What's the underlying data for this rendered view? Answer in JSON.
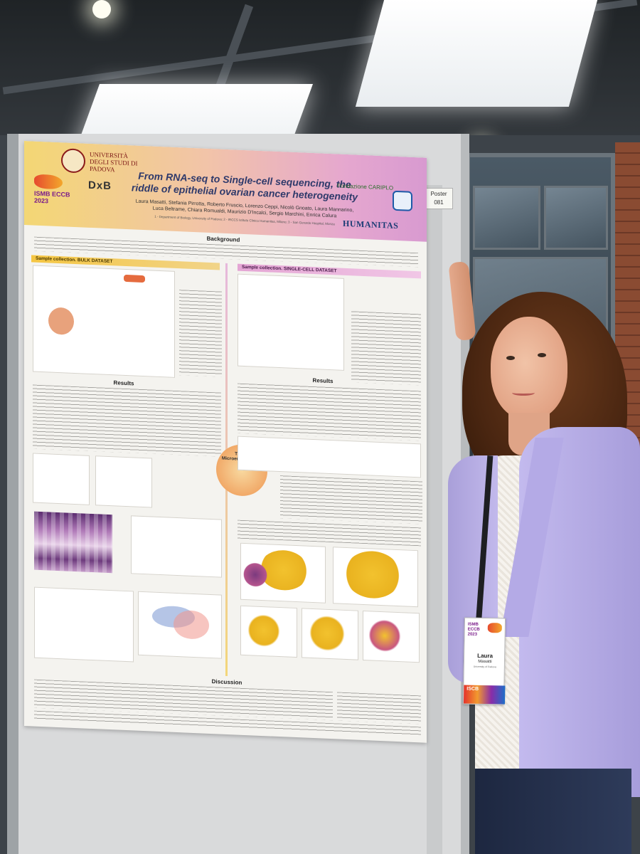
{
  "poster": {
    "title": "From RNA-seq to Single-cell sequencing, the riddle of epithelial ovarian cancer heterogeneity",
    "authors": "Laura Masatti, Stefania Pirrotta, Roberto Fruscio, Lorenzo Ceppi, Nicolò Gnoato, Laura Mannarino, Luca Beltrame, Chiara Romualdi, Maurizio D'Incalci, Sergio Marchini, Enrica Calura",
    "affiliation": "1 - Department of Biology, University of Padova; 2 - IRCCS Istituto Clinico Humanitas, Milano; 3 - San Gerardo Hospital, Monza",
    "university": "UNIVERSITÀ DEGLI STUDI DI PADOVA",
    "conference_logo": "ISMB ECCB 2023",
    "lab_logo": "DxB",
    "sponsor_1": "Fondazione CARIPLO",
    "sponsor_2": "AIRC",
    "sponsor_3": "HUMANITAS",
    "poster_number": "Poster 081",
    "sections": {
      "background": "Background",
      "left_bar": "Sample collection. BULK DATASET",
      "right_bar": "Sample collection. SINGLE-CELL DATASET",
      "results_left": "Results",
      "results_right": "Results",
      "discussion": "Discussion",
      "tumor_micro": "Tumor Microenvironment"
    }
  },
  "badge": {
    "logo": "ISMB ECCB 2023",
    "first_name": "Laura",
    "last_name": "Masatti",
    "org": "University of Padova",
    "footer": "ISCB"
  }
}
